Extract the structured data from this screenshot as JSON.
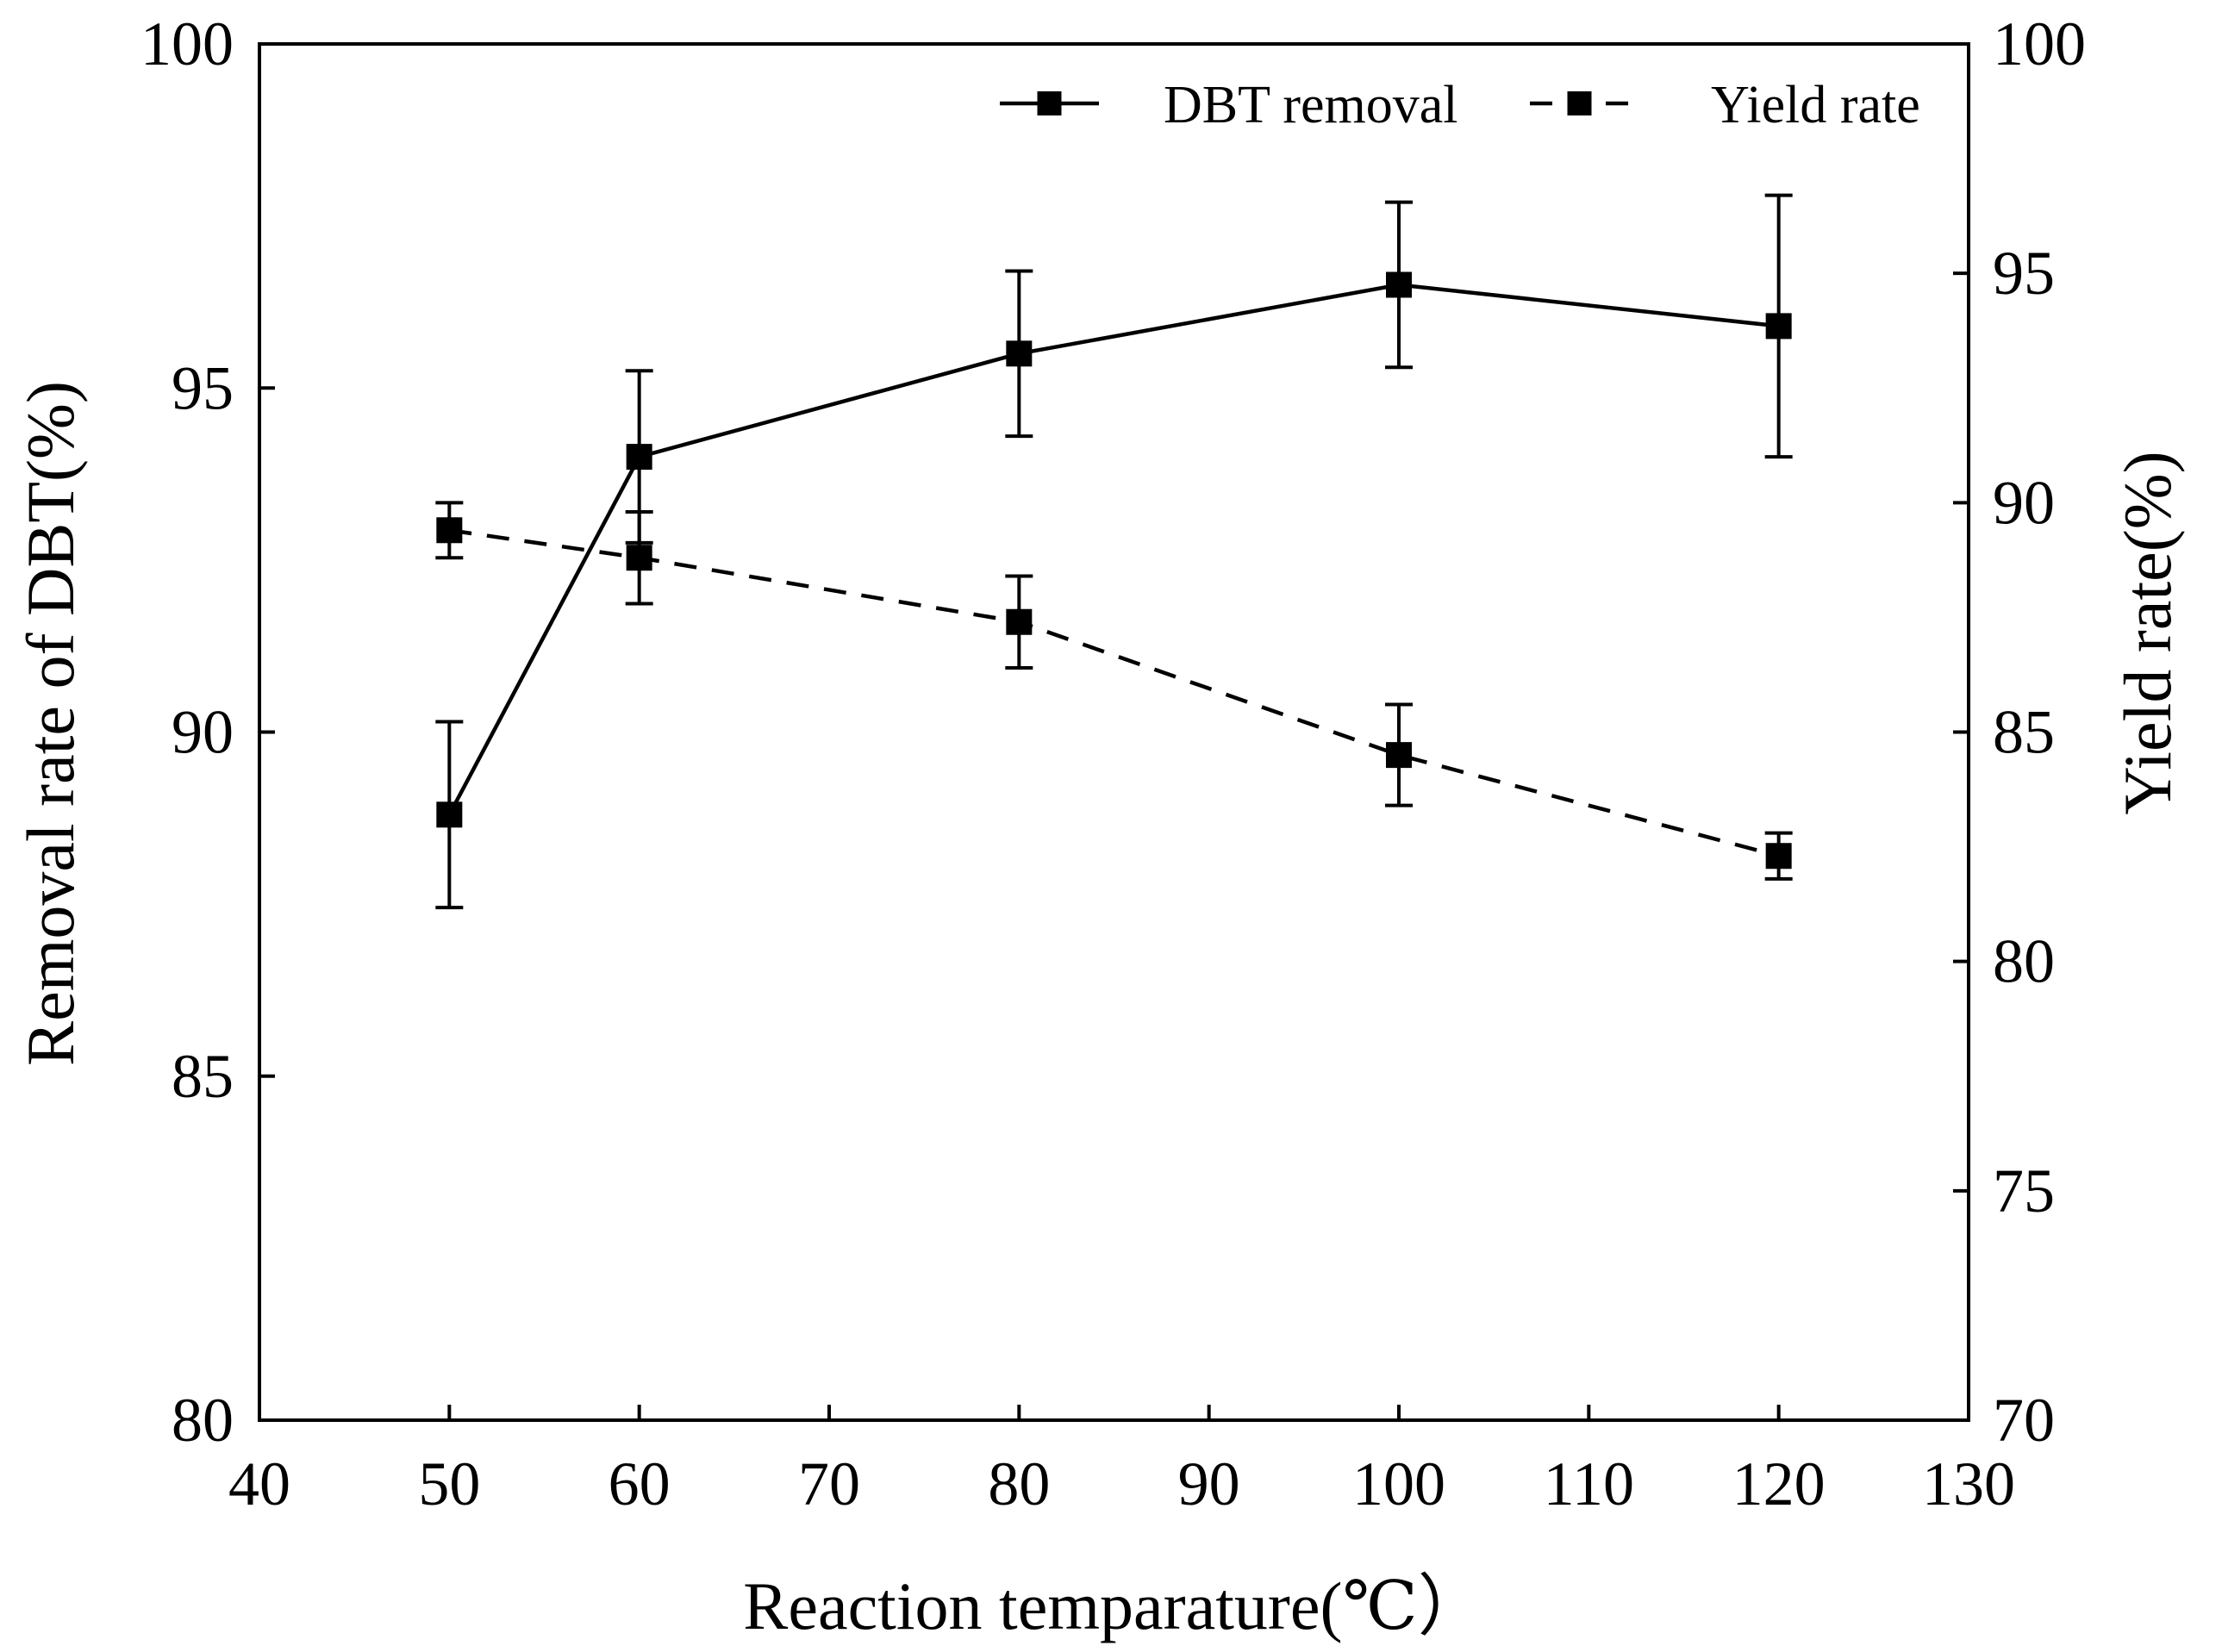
{
  "chart_data": {
    "type": "line",
    "title": "",
    "xlabel": "Reaction temparature(℃）",
    "ylabel_left": "Removal rate of DBT(%)",
    "ylabel_right": "Yield rate(%)",
    "xlim": [
      40,
      130
    ],
    "ylim_left": [
      80,
      100
    ],
    "ylim_right": [
      70,
      100
    ],
    "x_ticks": [
      40,
      50,
      60,
      70,
      80,
      90,
      100,
      110,
      120,
      130
    ],
    "y_left_ticks": [
      80,
      85,
      90,
      95,
      100
    ],
    "y_right_ticks": [
      70,
      75,
      80,
      85,
      90,
      95,
      100
    ],
    "grid": false,
    "legend_position": "top-right",
    "marker": "square",
    "series": [
      {
        "name": "DBT removal",
        "axis": "left",
        "line_style": "solid",
        "x": [
          50,
          60,
          80,
          100,
          120
        ],
        "values": [
          88.8,
          94.0,
          95.5,
          96.5,
          95.9
        ],
        "errors": [
          1.35,
          1.25,
          1.2,
          1.2,
          1.9
        ]
      },
      {
        "name": "Yield rate",
        "axis": "right",
        "line_style": "dashed",
        "x": [
          50,
          60,
          80,
          100,
          120
        ],
        "values": [
          89.4,
          88.8,
          87.4,
          84.5,
          82.3
        ],
        "errors": [
          0.6,
          1.0,
          1.0,
          1.1,
          0.5
        ]
      }
    ]
  }
}
